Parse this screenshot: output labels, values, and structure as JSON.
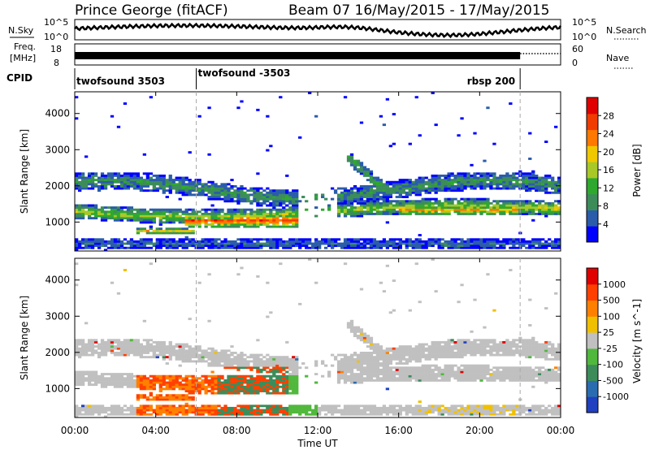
{
  "header": {
    "station": "Prince George (fitACF)",
    "beam_date": "Beam 07  16/May/2015 - 17/May/2015"
  },
  "top_panels": {
    "nsky": {
      "label": "N.Sky",
      "ticks": [
        "10^5",
        "10^0"
      ]
    },
    "nsearch": {
      "label": "N.Search",
      "ticks": [
        "10^5",
        "10^0"
      ]
    },
    "freq": {
      "label_1": "Freq.",
      "label_2": "[MHz]",
      "ticks": [
        "18",
        "8"
      ]
    },
    "nave": {
      "label": "Nave",
      "ticks": [
        "60",
        "0"
      ]
    },
    "cpid": {
      "label": "CPID",
      "segments": [
        {
          "name": "twofsound 3503",
          "start_h": 0,
          "end_h": 6
        },
        {
          "name": "twofsound -3503",
          "start_h": 6,
          "end_h": 22
        },
        {
          "name": "rbsp 200",
          "start_h": 22,
          "end_h": 24
        }
      ]
    }
  },
  "power_colorbar": {
    "label": "Power [dB]",
    "ticks": [
      "28",
      "24",
      "20",
      "16",
      "12",
      "8",
      "4"
    ],
    "colors": [
      "#0000ff",
      "#2a5caa",
      "#3c8c5a",
      "#2ea82e",
      "#a8c828",
      "#f0c800",
      "#ff7800",
      "#f03c00",
      "#e00000"
    ]
  },
  "velocity_colorbar": {
    "label": "Velocity [m s^-1]",
    "ticks": [
      "1000",
      "500",
      "100",
      "25",
      "-25",
      "-100",
      "-500",
      "-1000"
    ],
    "colors": [
      "#2040c0",
      "#2a6cb0",
      "#3c8c5a",
      "#50b83c",
      "#c0c0c0",
      "#f0c000",
      "#ff8000",
      "#ff4000",
      "#e00000"
    ]
  },
  "chart_data": [
    {
      "type": "heatmap",
      "name": "power",
      "ylabel": "Slant Range [km]",
      "x_range_h": [
        0,
        24
      ],
      "ylim": [
        200,
        4600
      ],
      "ytick_values": [
        1000,
        2000,
        3000,
        4000
      ],
      "ytick_labels": [
        "1000",
        "2000",
        "3000",
        "4000"
      ],
      "color_var": "Power [dB]",
      "color_range": [
        0,
        32
      ]
    },
    {
      "type": "heatmap",
      "name": "velocity",
      "ylabel": "Slant Range [km]",
      "x_range_h": [
        0,
        24
      ],
      "ylim": [
        200,
        4600
      ],
      "ytick_values": [
        1000,
        2000,
        3000,
        4000
      ],
      "ytick_labels": [
        "1000",
        "2000",
        "3000",
        "4000"
      ],
      "color_var": "Velocity [m s^-1]",
      "color_range": [
        -1000,
        1000
      ]
    }
  ],
  "x_axis": {
    "label": "Time UT",
    "tick_hours": [
      0,
      4,
      8,
      12,
      16,
      20,
      24
    ],
    "tick_labels": [
      "00:00",
      "04:00",
      "08:00",
      "12:00",
      "16:00",
      "20:00",
      "00:00"
    ]
  }
}
